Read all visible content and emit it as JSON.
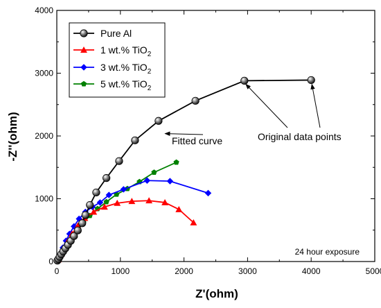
{
  "chart_data": {
    "type": "line",
    "xlabel": "Z'(ohm)",
    "ylabel": "-Z''(ohm)",
    "xlim": [
      0,
      5000
    ],
    "ylim": [
      0,
      4000
    ],
    "xticks": [
      0,
      1000,
      2000,
      3000,
      4000,
      5000
    ],
    "yticks": [
      0,
      1000,
      2000,
      3000,
      4000
    ],
    "grid": false,
    "legend_position": "top-left",
    "series": [
      {
        "name": "Pure Al",
        "name_main": "Pure Al",
        "name_sub": "",
        "color": "#000000",
        "marker": "sphere",
        "points": [
          [
            10,
            15
          ],
          [
            25,
            40
          ],
          [
            45,
            75
          ],
          [
            70,
            115
          ],
          [
            100,
            160
          ],
          [
            135,
            210
          ],
          [
            175,
            265
          ],
          [
            220,
            330
          ],
          [
            270,
            405
          ],
          [
            330,
            495
          ],
          [
            400,
            610
          ],
          [
            450,
            740
          ],
          [
            520,
            900
          ],
          [
            620,
            1100
          ],
          [
            780,
            1330
          ],
          [
            980,
            1600
          ],
          [
            1230,
            1930
          ],
          [
            1600,
            2240
          ],
          [
            2180,
            2560
          ],
          [
            2950,
            2880
          ],
          [
            4000,
            2890
          ]
        ]
      },
      {
        "name": "1 wt.% TiO2",
        "name_main": "1 wt.% TiO",
        "name_sub": "2",
        "color": "#ff0000",
        "marker": "triangle",
        "points": [
          [
            20,
            30
          ],
          [
            60,
            110
          ],
          [
            110,
            210
          ],
          [
            170,
            320
          ],
          [
            240,
            440
          ],
          [
            330,
            570
          ],
          [
            440,
            690
          ],
          [
            580,
            790
          ],
          [
            750,
            870
          ],
          [
            950,
            930
          ],
          [
            1180,
            960
          ],
          [
            1450,
            970
          ],
          [
            1700,
            940
          ],
          [
            1920,
            830
          ],
          [
            2150,
            620
          ]
        ]
      },
      {
        "name": "3 wt.% TiO2",
        "name_main": "3 wt.% TiO",
        "name_sub": "2",
        "color": "#0000ff",
        "marker": "diamond",
        "points": [
          [
            20,
            40
          ],
          [
            55,
            120
          ],
          [
            95,
            220
          ],
          [
            145,
            330
          ],
          [
            200,
            440
          ],
          [
            270,
            560
          ],
          [
            350,
            680
          ],
          [
            450,
            790
          ],
          [
            560,
            870
          ],
          [
            680,
            940
          ],
          [
            820,
            1060
          ],
          [
            1050,
            1150
          ],
          [
            1420,
            1290
          ],
          [
            1780,
            1280
          ],
          [
            2380,
            1090
          ]
        ]
      },
      {
        "name": "5 wt.% TiO2",
        "name_main": "5 wt.% TiO",
        "name_sub": "2",
        "color": "#008000",
        "marker": "pentagon",
        "points": [
          [
            15,
            20
          ],
          [
            45,
            70
          ],
          [
            80,
            130
          ],
          [
            120,
            190
          ],
          [
            165,
            260
          ],
          [
            215,
            340
          ],
          [
            270,
            420
          ],
          [
            340,
            520
          ],
          [
            420,
            620
          ],
          [
            520,
            730
          ],
          [
            640,
            840
          ],
          [
            780,
            950
          ],
          [
            940,
            1070
          ],
          [
            1110,
            1160
          ],
          [
            1300,
            1270
          ],
          [
            1530,
            1420
          ],
          [
            1880,
            1580
          ]
        ]
      }
    ],
    "annotations": [
      {
        "text": "Fitted curve",
        "target": [
          1680,
          2060
        ]
      },
      {
        "text": "Original data points",
        "targets": [
          [
            2950,
            2880
          ],
          [
            4000,
            2890
          ]
        ]
      }
    ],
    "note": "24 hour exposure"
  }
}
